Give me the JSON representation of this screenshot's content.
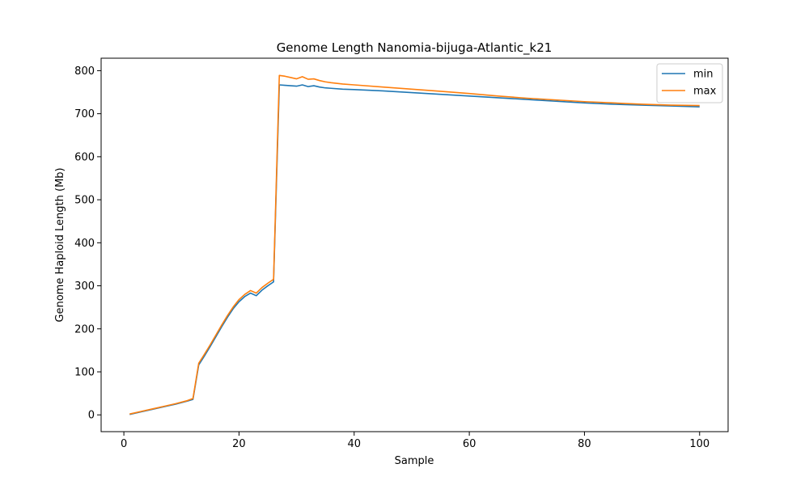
{
  "chart_data": {
    "type": "line",
    "title": "Genome Length Nanomia-bijuga-Atlantic_k21",
    "xlabel": "Sample",
    "ylabel": "Genome Haploid Length (Mb)",
    "xlim": [
      -3.95,
      104.95
    ],
    "ylim": [
      -39,
      829
    ],
    "xticks": [
      0,
      20,
      40,
      60,
      80,
      100
    ],
    "yticks": [
      0,
      100,
      200,
      300,
      400,
      500,
      600,
      700,
      800
    ],
    "grid": false,
    "legend_position": "top-right",
    "series": [
      {
        "name": "min",
        "color": "#1f77b4",
        "points": [
          [
            1,
            1
          ],
          [
            3,
            7
          ],
          [
            5,
            13
          ],
          [
            7,
            19
          ],
          [
            9,
            25
          ],
          [
            11,
            32
          ],
          [
            12,
            36
          ],
          [
            13,
            116
          ],
          [
            14,
            137
          ],
          [
            15,
            159
          ],
          [
            16,
            182
          ],
          [
            17,
            205
          ],
          [
            18,
            227
          ],
          [
            19,
            247
          ],
          [
            20,
            263
          ],
          [
            21,
            275
          ],
          [
            22,
            283
          ],
          [
            23,
            277
          ],
          [
            24,
            290
          ],
          [
            25,
            300
          ],
          [
            26,
            309
          ],
          [
            27,
            767
          ],
          [
            28,
            766
          ],
          [
            29,
            765
          ],
          [
            30,
            764
          ],
          [
            31,
            767
          ],
          [
            32,
            763
          ],
          [
            33,
            765
          ],
          [
            34,
            762
          ],
          [
            35,
            760
          ],
          [
            36,
            759
          ],
          [
            38,
            757
          ],
          [
            40,
            756
          ],
          [
            45,
            753
          ],
          [
            50,
            749
          ],
          [
            55,
            745
          ],
          [
            60,
            741
          ],
          [
            65,
            737
          ],
          [
            70,
            733
          ],
          [
            75,
            729
          ],
          [
            80,
            725
          ],
          [
            85,
            722
          ],
          [
            90,
            720
          ],
          [
            95,
            718
          ],
          [
            100,
            716
          ]
        ]
      },
      {
        "name": "max",
        "color": "#ff7f0e",
        "points": [
          [
            1,
            2
          ],
          [
            3,
            8
          ],
          [
            5,
            14
          ],
          [
            7,
            20
          ],
          [
            9,
            26
          ],
          [
            11,
            33
          ],
          [
            12,
            38
          ],
          [
            13,
            120
          ],
          [
            14,
            141
          ],
          [
            15,
            163
          ],
          [
            16,
            186
          ],
          [
            17,
            209
          ],
          [
            18,
            231
          ],
          [
            19,
            251
          ],
          [
            20,
            268
          ],
          [
            21,
            280
          ],
          [
            22,
            289
          ],
          [
            23,
            283
          ],
          [
            24,
            296
          ],
          [
            25,
            306
          ],
          [
            26,
            315
          ],
          [
            27,
            789
          ],
          [
            28,
            787
          ],
          [
            29,
            784
          ],
          [
            30,
            781
          ],
          [
            31,
            786
          ],
          [
            32,
            780
          ],
          [
            33,
            781
          ],
          [
            34,
            777
          ],
          [
            35,
            774
          ],
          [
            36,
            772
          ],
          [
            38,
            769
          ],
          [
            40,
            767
          ],
          [
            45,
            762
          ],
          [
            50,
            757
          ],
          [
            55,
            752
          ],
          [
            60,
            747
          ],
          [
            65,
            741
          ],
          [
            70,
            736
          ],
          [
            75,
            732
          ],
          [
            80,
            728
          ],
          [
            85,
            725
          ],
          [
            90,
            722
          ],
          [
            95,
            720
          ],
          [
            100,
            719
          ]
        ]
      }
    ]
  }
}
